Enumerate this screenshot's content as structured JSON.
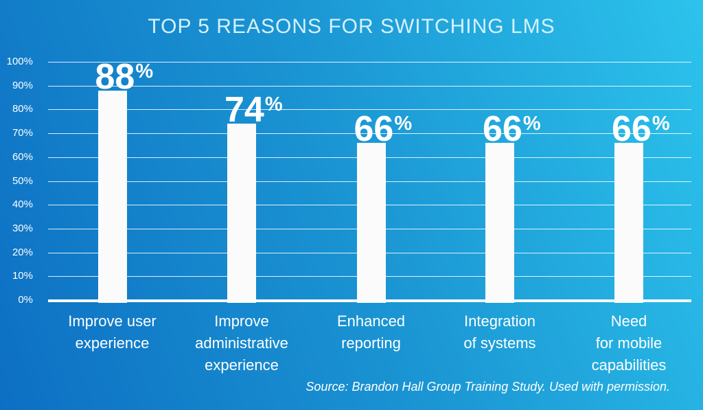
{
  "chart_data": {
    "type": "bar",
    "title": "TOP 5 REASONS FOR SWITCHING LMS",
    "source": "Source: Brandon Hall Group Training Study. Used with permission.",
    "categories": [
      [
        "Improve user",
        "experience"
      ],
      [
        "Improve",
        "administrative",
        "experience"
      ],
      [
        "Enhanced",
        "reporting"
      ],
      [
        "Integration",
        "of systems"
      ],
      [
        "Need",
        "for mobile",
        "capabilities"
      ]
    ],
    "values": [
      88,
      74,
      66,
      66,
      66
    ],
    "value_suffix": "%",
    "xlabel": "",
    "ylabel": "",
    "ylim": [
      0,
      100
    ],
    "y_ticks": [
      100,
      90,
      80,
      70,
      60,
      50,
      40,
      30,
      20,
      10,
      0
    ],
    "y_tick_suffix": "%",
    "grid": true,
    "legend": false,
    "colors": {
      "background_left": "#0d6fc3",
      "background_mid": "#1a93d2",
      "background_right": "#2cc3ec",
      "bar": "#fafbfa",
      "gridline": "rgba(255,255,255,0.85)",
      "axis_line": "#ffffff",
      "title_text": "#d6f1fb",
      "label_text": "#ffffff"
    }
  }
}
